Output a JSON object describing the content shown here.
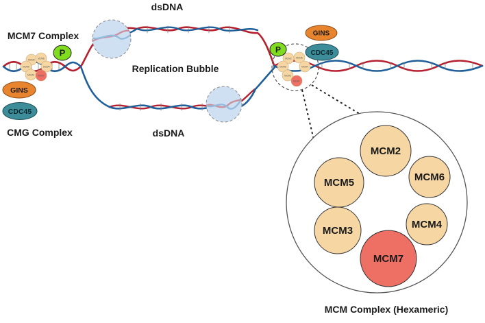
{
  "labels": {
    "dsdna_top": "dsDNA",
    "dsdna_bottom": "dsDNA",
    "replication_bubble": "Replication Bubble",
    "mcm7_complex": "MCM7 Complex",
    "cmg_complex": "CMG Complex",
    "mcm_complex_hexameric": "MCM Complex (Hexameric)"
  },
  "left_complex": {
    "phospho": "P",
    "gins": "GINS",
    "cdc45": "CDC45",
    "subunits_small": [
      "MCM2",
      "MCM6",
      "MCM5",
      "MCM4",
      "MCM3",
      "MCM7"
    ]
  },
  "right_complex": {
    "phospho": "P",
    "gins": "GINS",
    "cdc45": "CDC45",
    "subunits_small": [
      "MCM2",
      "MCM6",
      "MCM5",
      "MCM4",
      "MCM3",
      "MCM7"
    ]
  },
  "hexamer": {
    "subunits": [
      "MCM2",
      "MCM6",
      "MCM4",
      "MCM7",
      "MCM3",
      "MCM5"
    ]
  },
  "colors": {
    "strand_red": "#b5202e",
    "strand_blue": "#1f5f99",
    "mcm_fill": "#f6d7a4",
    "mcm7_fill": "#ee6f63",
    "gins_fill": "#e8842e",
    "cdc45_fill": "#3c8c9a",
    "phospho_fill": "#7fdc1f",
    "highlight": "#cfe0f3"
  }
}
